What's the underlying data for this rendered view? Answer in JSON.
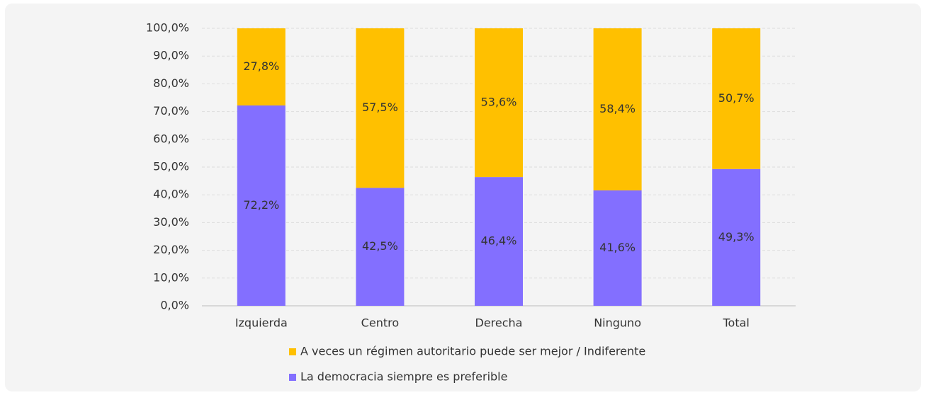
{
  "chart_data": {
    "type": "stacked_bar",
    "categories": [
      "Izquierda",
      "Centro",
      "Derecha",
      "Ninguno",
      "Total"
    ],
    "series": [
      {
        "name": "La democracia siempre es preferible",
        "color": "#836fff",
        "values": [
          72.2,
          42.5,
          46.4,
          41.6,
          49.3
        ],
        "value_labels": [
          "72,2%",
          "42,5%",
          "46,4%",
          "41,6%",
          "49,3%"
        ]
      },
      {
        "name": "A veces un régimen autoritario puede ser mejor / Indiferente",
        "color": "#ffc000",
        "values": [
          27.8,
          57.5,
          53.6,
          58.4,
          50.7
        ],
        "value_labels": [
          "27,8%",
          "57,5%",
          "53,6%",
          "58,4%",
          "50,7%"
        ]
      }
    ],
    "ylim": [
      0,
      100
    ],
    "yticks": [
      {
        "value": 0,
        "label": "0,0%"
      },
      {
        "value": 10,
        "label": "10,0%"
      },
      {
        "value": 20,
        "label": "20,0%"
      },
      {
        "value": 30,
        "label": "30,0%"
      },
      {
        "value": 40,
        "label": "40,0%"
      },
      {
        "value": 50,
        "label": "50,0%"
      },
      {
        "value": 60,
        "label": "60,0%"
      },
      {
        "value": 70,
        "label": "70,0%"
      },
      {
        "value": 80,
        "label": "80,0%"
      },
      {
        "value": 90,
        "label": "90,0%"
      },
      {
        "value": 100,
        "label": "100,0%"
      }
    ],
    "grid": true
  }
}
